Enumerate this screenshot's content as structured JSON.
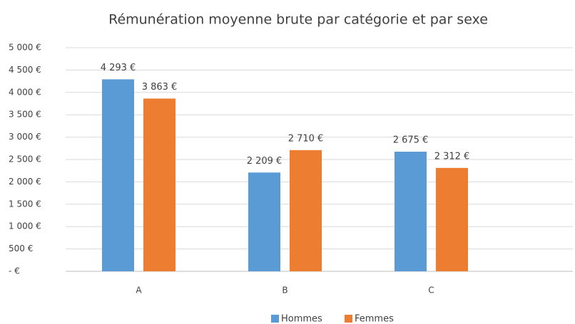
{
  "chart_data": {
    "type": "bar",
    "title": "Rémunération moyenne brute par catégorie et par sexe",
    "categories": [
      "A",
      "B",
      "C"
    ],
    "series": [
      {
        "name": "Hommes",
        "color": "#5b9bd5",
        "values": [
          4293,
          2209,
          2675
        ],
        "value_labels": [
          "4 293 €",
          "2 209 €",
          "2 675 €"
        ]
      },
      {
        "name": "Femmes",
        "color": "#ed7d31",
        "values": [
          3863,
          2710,
          2312
        ],
        "value_labels": [
          "3 863 €",
          "2 710 €",
          "2 312 €"
        ]
      }
    ],
    "ylim": [
      0,
      5000
    ],
    "yticks": [
      {
        "value": 0,
        "label": "-  €"
      },
      {
        "value": 500,
        "label": "500 €"
      },
      {
        "value": 1000,
        "label": "1 000 €"
      },
      {
        "value": 1500,
        "label": "1 500 €"
      },
      {
        "value": 2000,
        "label": "2 000 €"
      },
      {
        "value": 2500,
        "label": "2 500 €"
      },
      {
        "value": 3000,
        "label": "3 000 €"
      },
      {
        "value": 3500,
        "label": "3 500 €"
      },
      {
        "value": 4000,
        "label": "4 000 €"
      },
      {
        "value": 4500,
        "label": "4 500 €"
      },
      {
        "value": 5000,
        "label": "5 000 €"
      }
    ],
    "grid": true,
    "legend": "bottom"
  }
}
